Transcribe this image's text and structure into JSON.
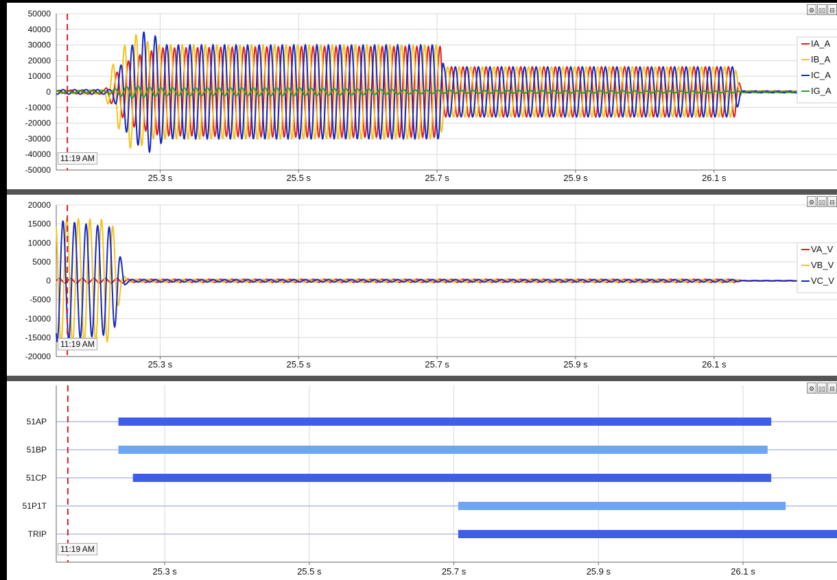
{
  "time_marker_label": "11:19 AM",
  "toolbar": {
    "icons": [
      "settings-icon",
      "dual-view-icon",
      "split-view-icon"
    ],
    "glyphs": [
      "⚙",
      "▯▯",
      "⊟"
    ]
  },
  "chart_data": [
    {
      "type": "line",
      "title": "",
      "xlabel": "",
      "ylabel": "",
      "x_ticks": [
        "25.3 s",
        "25.5 s",
        "25.7 s",
        "25.9 s",
        "26.1 s"
      ],
      "x_tick_values": [
        25.3,
        25.5,
        25.7,
        25.9,
        26.1
      ],
      "xlim": [
        25.15,
        26.23
      ],
      "ylim": [
        -50000,
        50000
      ],
      "y_ticks": [
        "50000",
        "40000",
        "30000",
        "20000",
        "10000",
        "0",
        "-10000",
        "-20000",
        "-30000",
        "-40000",
        "-50000"
      ],
      "y_tick_values": [
        50000,
        40000,
        30000,
        20000,
        10000,
        0,
        -10000,
        -20000,
        -30000,
        -40000,
        -50000
      ],
      "grid": true,
      "legend_position": "top-right",
      "time_marker_s": 25.166,
      "waveform": {
        "frequency_hz": 60
      },
      "series": [
        {
          "name": "IA_A",
          "color": "#e0201c",
          "phase_deg": 0,
          "envelope": [
            [
              25.15,
              1000
            ],
            [
              25.22,
              1500
            ],
            [
              25.24,
              14000
            ],
            [
              25.26,
              22000
            ],
            [
              25.3,
              28000
            ],
            [
              25.5,
              29000
            ],
            [
              25.705,
              29000
            ],
            [
              25.71,
              16000
            ],
            [
              26.13,
              16000
            ],
            [
              26.14,
              600
            ],
            [
              26.23,
              600
            ]
          ]
        },
        {
          "name": "IB_A",
          "color": "#f2c41a",
          "phase_deg": 120,
          "envelope": [
            [
              25.15,
              1000
            ],
            [
              25.22,
              1500
            ],
            [
              25.23,
              16000
            ],
            [
              25.26,
              38000
            ],
            [
              25.29,
              30000
            ],
            [
              25.5,
              30000
            ],
            [
              25.705,
              30000
            ],
            [
              25.71,
              16000
            ],
            [
              26.13,
              16000
            ],
            [
              26.14,
              600
            ],
            [
              26.23,
              600
            ]
          ]
        },
        {
          "name": "IC_A",
          "color": "#1426c8",
          "phase_deg": 240,
          "envelope": [
            [
              25.15,
              1500
            ],
            [
              25.23,
              1500
            ],
            [
              25.25,
              25000
            ],
            [
              25.28,
              40000
            ],
            [
              25.31,
              30000
            ],
            [
              25.5,
              30000
            ],
            [
              25.705,
              30000
            ],
            [
              25.71,
              16000
            ],
            [
              26.13,
              16000
            ],
            [
              26.14,
              600
            ],
            [
              26.23,
              600
            ]
          ]
        },
        {
          "name": "IG_A",
          "color": "#2aa02a",
          "phase_deg": 60,
          "envelope": [
            [
              25.15,
              800
            ],
            [
              25.22,
              800
            ],
            [
              25.26,
              4000
            ],
            [
              25.3,
              2500
            ],
            [
              25.5,
              2500
            ],
            [
              25.705,
              1000
            ],
            [
              26.13,
              500
            ],
            [
              26.23,
              300
            ]
          ]
        }
      ]
    },
    {
      "type": "line",
      "title": "",
      "xlabel": "",
      "ylabel": "",
      "x_ticks": [
        "25.3 s",
        "25.5 s",
        "25.7 s",
        "25.9 s",
        "26.1 s"
      ],
      "x_tick_values": [
        25.3,
        25.5,
        25.7,
        25.9,
        26.1
      ],
      "xlim": [
        25.15,
        26.23
      ],
      "ylim": [
        -20000,
        20000
      ],
      "y_ticks": [
        "20000",
        "15000",
        "10000",
        "5000",
        "0",
        "-5000",
        "-10000",
        "-15000",
        "-20000"
      ],
      "y_tick_values": [
        20000,
        15000,
        10000,
        5000,
        0,
        -5000,
        -10000,
        -15000,
        -20000
      ],
      "grid": true,
      "legend_position": "top-right",
      "time_marker_s": 25.166,
      "waveform": {
        "frequency_hz": 60
      },
      "series": [
        {
          "name": "VA_V",
          "color": "#e0201c",
          "phase_deg": 0,
          "envelope": [
            [
              25.15,
              600
            ],
            [
              25.25,
              600
            ],
            [
              25.255,
              400
            ],
            [
              26.13,
              400
            ],
            [
              26.14,
              80
            ],
            [
              26.23,
              80
            ]
          ]
        },
        {
          "name": "VB_V",
          "color": "#f2c41a",
          "phase_deg": 120,
          "envelope": [
            [
              25.15,
              16500
            ],
            [
              25.23,
              16000
            ],
            [
              25.245,
              1500
            ],
            [
              25.255,
              400
            ],
            [
              26.13,
              400
            ],
            [
              26.14,
              80
            ],
            [
              26.23,
              80
            ]
          ]
        },
        {
          "name": "VC_V",
          "color": "#1426c8",
          "phase_deg": 240,
          "envelope": [
            [
              25.15,
              16000
            ],
            [
              25.232,
              14000
            ],
            [
              25.25,
              1000
            ],
            [
              25.255,
              350
            ],
            [
              26.13,
              350
            ],
            [
              26.14,
              80
            ],
            [
              26.23,
              80
            ]
          ]
        }
      ]
    },
    {
      "type": "digital",
      "title": "",
      "x_ticks": [
        "25.3 s",
        "25.5 s",
        "25.7 s",
        "25.9 s",
        "26.1 s"
      ],
      "x_tick_values": [
        25.3,
        25.5,
        25.7,
        25.9,
        26.1
      ],
      "xlim": [
        25.15,
        26.23
      ],
      "time_marker_s": 25.166,
      "channels": [
        {
          "name": "51AP",
          "color": "#3f5de8",
          "on": [
            25.236,
            26.139
          ]
        },
        {
          "name": "51BP",
          "color": "#6ea6f2",
          "on": [
            25.236,
            26.134
          ]
        },
        {
          "name": "51CP",
          "color": "#3f5de8",
          "on": [
            25.256,
            26.139
          ]
        },
        {
          "name": "51P1T",
          "color": "#6ea6f2",
          "on": [
            25.706,
            26.159
          ]
        },
        {
          "name": "TRIP",
          "color": "#3f5de8",
          "on": [
            25.706,
            26.23
          ]
        }
      ]
    }
  ]
}
